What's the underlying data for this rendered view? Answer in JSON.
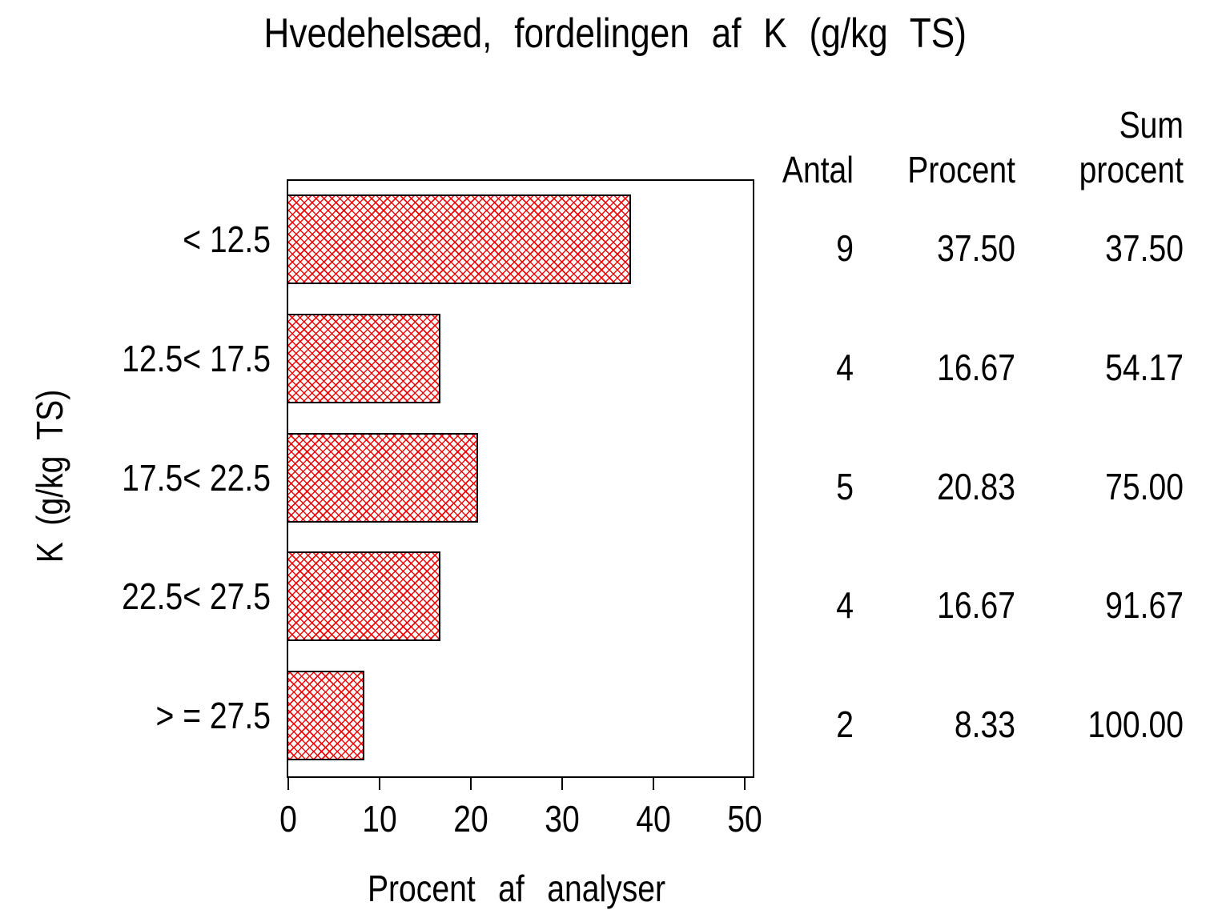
{
  "title": "Hvedehelsæd, fordelingen af K (g/kg TS)",
  "colors": {
    "background": "#ffffff",
    "text": "#000000",
    "bar_pattern_red": "#ee0000",
    "bar_border": "#000000",
    "axis": "#000000"
  },
  "chart_data": {
    "type": "bar",
    "orientation": "horizontal",
    "title": "Hvedehelsæd, fordelingen af K (g/kg TS)",
    "xlabel": "Procent af analyser",
    "ylabel": "K (g/kg TS)",
    "xlim": [
      0,
      50
    ],
    "xticks": [
      "0",
      "10",
      "20",
      "30",
      "40",
      "50"
    ],
    "grid": false,
    "legend": "none",
    "categories": [
      "< 12.5",
      "12.5< 17.5",
      "17.5< 22.5",
      "22.5< 27.5",
      "> = 27.5"
    ],
    "series": [
      {
        "name": "Procent af analyser",
        "values": [
          37.5,
          16.67,
          20.83,
          16.67,
          8.33
        ]
      }
    ],
    "bar_style": {
      "fill": "crosshatch",
      "pattern_color": "#ee0000",
      "fill_background": "#ffffff",
      "border_color": "#000000"
    },
    "side_table": {
      "header_lines": {
        "antal": "Antal",
        "procent": "Procent",
        "sum_line1": "Sum",
        "sum_line2": "procent"
      },
      "columns": [
        "Antal",
        "Procent",
        "Sum procent"
      ],
      "rows": [
        {
          "antal": "9",
          "procent": "37.50",
          "sum_procent": "37.50"
        },
        {
          "antal": "4",
          "procent": "16.67",
          "sum_procent": "54.17"
        },
        {
          "antal": "5",
          "procent": "20.83",
          "sum_procent": "75.00"
        },
        {
          "antal": "4",
          "procent": "16.67",
          "sum_procent": "91.67"
        },
        {
          "antal": "2",
          "procent": "8.33",
          "sum_procent": "100.00"
        }
      ]
    }
  }
}
